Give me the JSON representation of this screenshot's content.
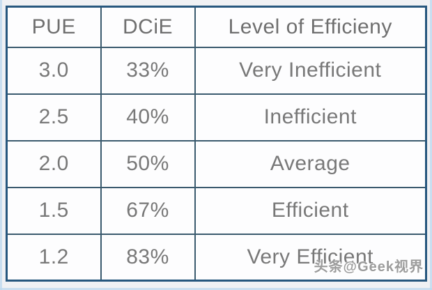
{
  "chart_data": {
    "type": "table",
    "title": "",
    "columns": [
      "PUE",
      "DCiE",
      "Level of Efficieny"
    ],
    "rows": [
      [
        "3.0",
        "33%",
        "Very Inefficient"
      ],
      [
        "2.5",
        "40%",
        "Inefficient"
      ],
      [
        "2.0",
        "50%",
        "Average"
      ],
      [
        "1.5",
        "67%",
        "Efficient"
      ],
      [
        "1.2",
        "83%",
        "Very Efficient"
      ]
    ]
  },
  "watermark": {
    "text": "头条@Geek视界"
  },
  "colors": {
    "outer_border": "#27577e",
    "grid_line": "#3a5a6e",
    "header_text": "#6f6f6f",
    "cell_text": "#787878",
    "cell_background": "#fdfdfe",
    "page_background": "#f0f1f4",
    "edge_tint": "#bfdaef",
    "watermark_text": "#9c9c9c"
  }
}
